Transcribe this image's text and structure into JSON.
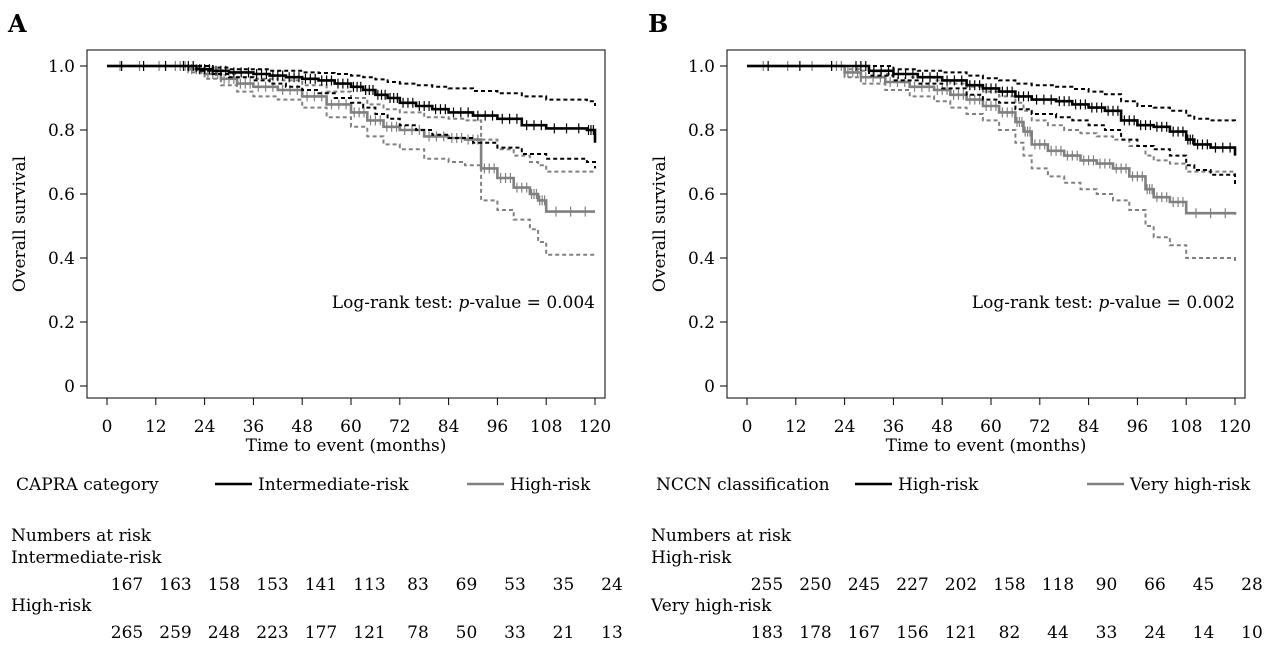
{
  "chart_data": [
    {
      "type": "line",
      "panel_label": "A",
      "xlabel": "Time to event (months)",
      "ylabel": "Overall survival",
      "xlim": [
        0,
        120
      ],
      "ylim": [
        0,
        1.0
      ],
      "x_ticks": [
        0,
        12,
        24,
        36,
        48,
        60,
        72,
        84,
        96,
        108,
        120
      ],
      "y_ticks": [
        0,
        0.2,
        0.4,
        0.6,
        0.8,
        1.0
      ],
      "y_tick_labels": [
        "0",
        "0.2",
        "0.4",
        "0.6",
        "0.8",
        "1.0"
      ],
      "grid": false,
      "annotation": {
        "prefix": "Log-rank test: ",
        "italic": "p",
        "suffix": "-value = 0.004"
      },
      "legend": {
        "title": "CAPRA category",
        "position": "bottom"
      },
      "series": [
        {
          "name": "Intermediate-risk",
          "color": "#000000",
          "x": [
            0,
            18,
            22,
            26,
            30,
            36,
            40,
            44,
            48,
            52,
            56,
            60,
            63,
            66,
            69,
            72,
            76,
            80,
            84,
            90,
            96,
            102,
            108,
            118,
            120
          ],
          "y": [
            1.0,
            1.0,
            0.99,
            0.985,
            0.98,
            0.975,
            0.97,
            0.965,
            0.96,
            0.955,
            0.945,
            0.935,
            0.925,
            0.91,
            0.9,
            0.885,
            0.875,
            0.865,
            0.855,
            0.845,
            0.835,
            0.815,
            0.805,
            0.8,
            0.76
          ],
          "ci_lower": [
            1.0,
            1.0,
            0.985,
            0.975,
            0.965,
            0.955,
            0.945,
            0.935,
            0.925,
            0.915,
            0.9,
            0.885,
            0.87,
            0.85,
            0.835,
            0.815,
            0.8,
            0.785,
            0.775,
            0.76,
            0.745,
            0.725,
            0.71,
            0.7,
            0.68
          ],
          "ci_upper": [
            1.0,
            1.0,
            1.0,
            0.995,
            0.99,
            0.99,
            0.985,
            0.985,
            0.98,
            0.978,
            0.975,
            0.97,
            0.965,
            0.958,
            0.95,
            0.945,
            0.94,
            0.935,
            0.93,
            0.922,
            0.915,
            0.905,
            0.895,
            0.89,
            0.875
          ]
        },
        {
          "name": "High-risk",
          "color": "#808080",
          "x": [
            0,
            16,
            20,
            24,
            28,
            32,
            36,
            42,
            48,
            54,
            60,
            64,
            68,
            72,
            78,
            84,
            88,
            92,
            96,
            100,
            104,
            106,
            108,
            120
          ],
          "y": [
            1.0,
            1.0,
            0.99,
            0.975,
            0.96,
            0.945,
            0.935,
            0.925,
            0.905,
            0.88,
            0.855,
            0.83,
            0.81,
            0.8,
            0.78,
            0.775,
            0.77,
            0.68,
            0.65,
            0.62,
            0.6,
            0.58,
            0.545,
            0.545
          ],
          "ci_lower": [
            1.0,
            1.0,
            0.98,
            0.96,
            0.94,
            0.92,
            0.905,
            0.895,
            0.87,
            0.84,
            0.81,
            0.78,
            0.755,
            0.74,
            0.71,
            0.7,
            0.69,
            0.58,
            0.55,
            0.52,
            0.49,
            0.45,
            0.41,
            0.41
          ],
          "ci_upper": [
            1.0,
            1.0,
            0.995,
            0.985,
            0.975,
            0.965,
            0.96,
            0.955,
            0.94,
            0.92,
            0.9,
            0.88,
            0.865,
            0.855,
            0.84,
            0.835,
            0.83,
            0.77,
            0.74,
            0.72,
            0.7,
            0.69,
            0.67,
            0.67
          ]
        }
      ],
      "risk_table": {
        "title": "Numbers at risk",
        "rows": [
          {
            "label": "Intermediate-risk",
            "values": [
              167,
              163,
              158,
              153,
              141,
              113,
              83,
              69,
              53,
              35,
              24
            ]
          },
          {
            "label": "High-risk",
            "values": [
              265,
              259,
              248,
              223,
              177,
              121,
              78,
              50,
              33,
              21,
              13
            ]
          }
        ]
      }
    },
    {
      "type": "line",
      "panel_label": "B",
      "xlabel": "Time to event (months)",
      "ylabel": "Overall survival",
      "xlim": [
        0,
        120
      ],
      "ylim": [
        0,
        1.0
      ],
      "x_ticks": [
        0,
        12,
        24,
        36,
        48,
        60,
        72,
        84,
        96,
        108,
        120
      ],
      "y_ticks": [
        0,
        0.2,
        0.4,
        0.6,
        0.8,
        1.0
      ],
      "y_tick_labels": [
        "0",
        "0.2",
        "0.4",
        "0.6",
        "0.8",
        "1.0"
      ],
      "grid": false,
      "annotation": {
        "prefix": "Log-rank test: ",
        "italic": "p",
        "suffix": "-value = 0.002"
      },
      "legend": {
        "title": "NCCN classification",
        "position": "bottom"
      },
      "series": [
        {
          "name": "High-risk",
          "color": "#000000",
          "x": [
            0,
            26,
            30,
            36,
            42,
            48,
            54,
            58,
            62,
            66,
            70,
            76,
            80,
            84,
            88,
            92,
            96,
            100,
            104,
            108,
            110,
            114,
            120
          ],
          "y": [
            1.0,
            1.0,
            0.985,
            0.975,
            0.965,
            0.955,
            0.94,
            0.93,
            0.92,
            0.905,
            0.895,
            0.89,
            0.88,
            0.87,
            0.86,
            0.83,
            0.815,
            0.81,
            0.795,
            0.77,
            0.755,
            0.745,
            0.72
          ],
          "ci_lower": [
            1.0,
            1.0,
            0.97,
            0.955,
            0.945,
            0.93,
            0.91,
            0.895,
            0.885,
            0.865,
            0.85,
            0.84,
            0.83,
            0.815,
            0.8,
            0.77,
            0.75,
            0.74,
            0.72,
            0.69,
            0.675,
            0.66,
            0.63
          ],
          "ci_upper": [
            1.0,
            1.0,
            1.0,
            0.99,
            0.985,
            0.98,
            0.97,
            0.962,
            0.955,
            0.945,
            0.94,
            0.935,
            0.928,
            0.92,
            0.912,
            0.89,
            0.875,
            0.87,
            0.86,
            0.845,
            0.835,
            0.83,
            0.825
          ]
        },
        {
          "name": "Very high-risk",
          "color": "#808080",
          "x": [
            0,
            20,
            24,
            28,
            34,
            40,
            46,
            50,
            54,
            58,
            62,
            66,
            68,
            70,
            74,
            78,
            82,
            86,
            90,
            94,
            98,
            100,
            104,
            108,
            120
          ],
          "y": [
            1.0,
            1.0,
            0.98,
            0.965,
            0.95,
            0.935,
            0.925,
            0.91,
            0.895,
            0.875,
            0.855,
            0.825,
            0.795,
            0.755,
            0.735,
            0.72,
            0.705,
            0.695,
            0.68,
            0.655,
            0.615,
            0.59,
            0.575,
            0.54,
            0.535
          ],
          "ci_lower": [
            1.0,
            1.0,
            0.965,
            0.945,
            0.925,
            0.905,
            0.89,
            0.87,
            0.85,
            0.83,
            0.8,
            0.76,
            0.72,
            0.68,
            0.655,
            0.635,
            0.615,
            0.6,
            0.58,
            0.55,
            0.5,
            0.465,
            0.44,
            0.4,
            0.385
          ],
          "ci_upper": [
            1.0,
            1.0,
            0.99,
            0.985,
            0.975,
            0.965,
            0.955,
            0.945,
            0.935,
            0.92,
            0.905,
            0.885,
            0.86,
            0.83,
            0.815,
            0.8,
            0.79,
            0.78,
            0.77,
            0.75,
            0.72,
            0.705,
            0.695,
            0.67,
            0.66
          ]
        }
      ],
      "risk_table": {
        "title": "Numbers at risk",
        "rows": [
          {
            "label": "High-risk",
            "values": [
              255,
              250,
              245,
              227,
              202,
              158,
              118,
              90,
              66,
              45,
              28
            ]
          },
          {
            "label": "Very high-risk",
            "values": [
              183,
              178,
              167,
              156,
              121,
              82,
              44,
              33,
              24,
              14,
              10
            ]
          }
        ]
      }
    }
  ]
}
